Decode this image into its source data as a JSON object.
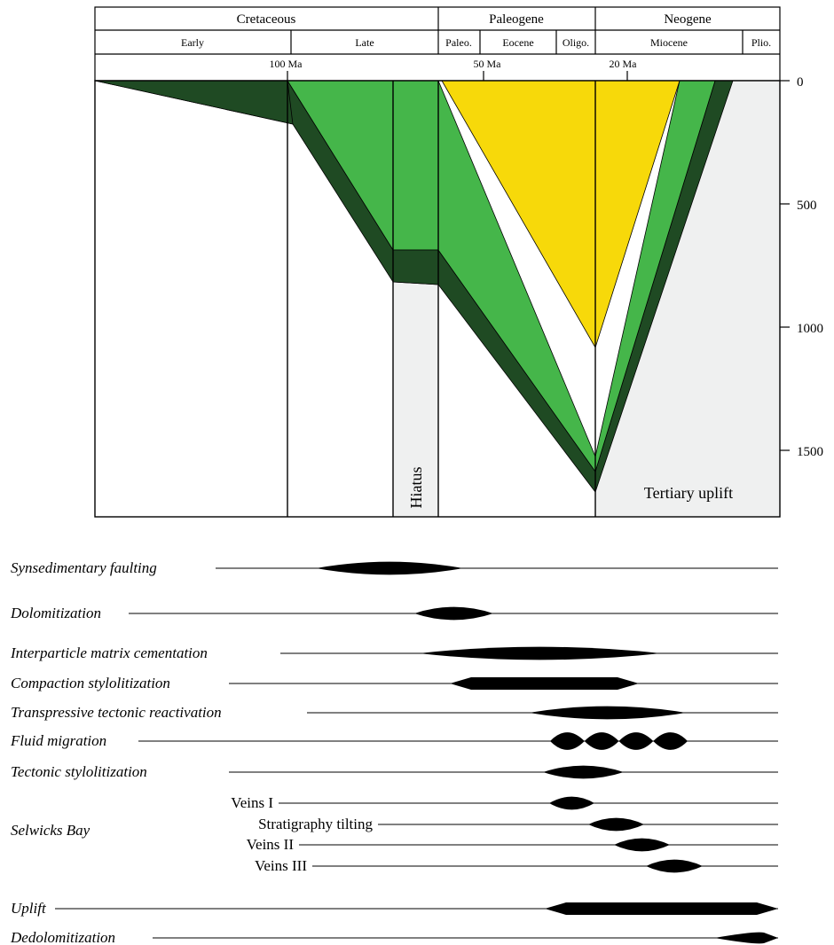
{
  "header": {
    "periods": [
      "Cretaceous",
      "Paleogene",
      "Neogene"
    ],
    "epochs": [
      "Early",
      "Late",
      "Paleo.",
      "Eocene",
      "Oligo.",
      "Miocene",
      "Plio."
    ],
    "ages": [
      "100 Ma",
      "50 Ma",
      "20 Ma"
    ]
  },
  "depth_axis": {
    "ticks": [
      "0",
      "500",
      "1000",
      "1500"
    ]
  },
  "labels": {
    "hiatus": "Hiatus",
    "uplift_zone": "Tertiary uplift"
  },
  "colors": {
    "dark_green": "#1f4a23",
    "green": "#45b64a",
    "yellow": "#f7d90a",
    "hiatus_gray": "#eff0f0",
    "line": "#000000"
  },
  "events": [
    {
      "label": "Synsedimentary faulting",
      "italic": true,
      "indent": false
    },
    {
      "label": "Dolomitization",
      "italic": true,
      "indent": false
    },
    {
      "label": "Interparticle matrix cementation",
      "italic": true,
      "indent": false
    },
    {
      "label": "Compaction stylolitization",
      "italic": true,
      "indent": false
    },
    {
      "label": "Transpressive tectonic reactivation",
      "italic": true,
      "indent": false
    },
    {
      "label": "Fluid migration",
      "italic": true,
      "indent": false
    },
    {
      "label": "Tectonic stylolitization",
      "italic": true,
      "indent": false
    },
    {
      "label": "Veins I",
      "italic": false,
      "indent": true
    },
    {
      "label": "Stratigraphy tilting",
      "italic": false,
      "indent": true
    },
    {
      "label": "Veins II",
      "italic": false,
      "indent": true
    },
    {
      "label": "Veins III",
      "italic": false,
      "indent": true
    },
    {
      "label": "Uplift",
      "italic": true,
      "indent": false
    },
    {
      "label": "Dedolomitization",
      "italic": true,
      "indent": false
    }
  ],
  "group_label": "Selwicks Bay"
}
